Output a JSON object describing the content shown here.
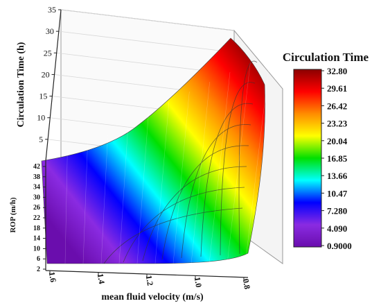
{
  "chart_data": {
    "type": "surface3d",
    "title": "",
    "z_axis": {
      "label": "Circulation Time (h)",
      "ticks": [
        "5",
        "10",
        "15",
        "20",
        "25",
        "30",
        "35"
      ],
      "range": [
        0,
        35
      ]
    },
    "y_axis": {
      "label": "ROP (m/h)",
      "ticks": [
        "2",
        "6",
        "10",
        "14",
        "18",
        "22",
        "26",
        "30",
        "34",
        "38",
        "42"
      ],
      "range": [
        2,
        42
      ]
    },
    "x_axis": {
      "label": "mean fluid velocity (m/s)",
      "ticks": [
        "1.6",
        "1.4",
        "1.2",
        "1.0",
        "0.8"
      ],
      "range": [
        0.8,
        1.6
      ],
      "reversed": true
    },
    "surface_samples": [
      {
        "velocity": 1.6,
        "rop": 2,
        "time": 0.9
      },
      {
        "velocity": 1.6,
        "rop": 42,
        "time": 3.2
      },
      {
        "velocity": 1.2,
        "rop": 42,
        "time": 7.3
      },
      {
        "velocity": 1.0,
        "rop": 42,
        "time": 14
      },
      {
        "velocity": 0.8,
        "rop": 42,
        "time": 32.8
      },
      {
        "velocity": 0.8,
        "rop": 2,
        "time": 1.5
      }
    ],
    "colorbar": {
      "title": "Circulation Time",
      "ticks": [
        "32.80",
        "29.61",
        "26.42",
        "23.23",
        "20.04",
        "16.85",
        "13.66",
        "10.47",
        "7.280",
        "4.090",
        "0.9000"
      ],
      "min": 0.9,
      "max": 32.8,
      "colors": [
        "#8b0000",
        "#ff0000",
        "#ff8c00",
        "#ffff00",
        "#00e000",
        "#00ffff",
        "#0000ff",
        "#8a2be2",
        "#6a0dad"
      ]
    },
    "grid": true,
    "legend_position": "right"
  }
}
